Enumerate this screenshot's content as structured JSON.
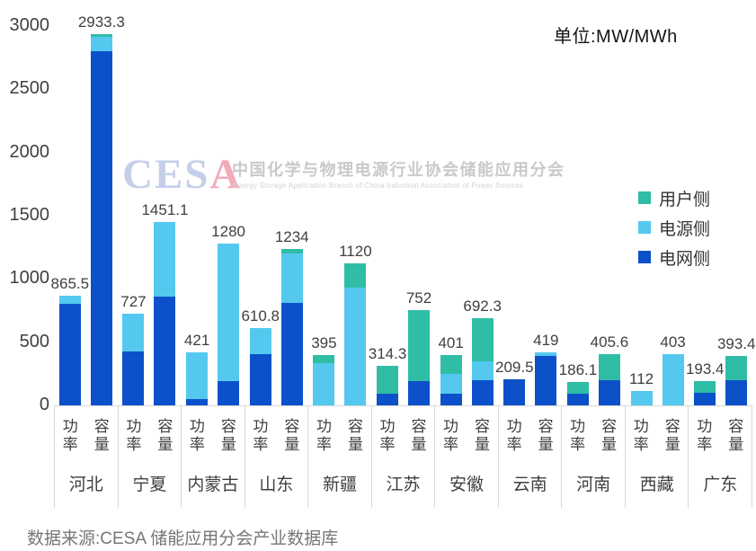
{
  "unit_label": "单位:MW/MWh",
  "source_note": "数据来源:CESA 储能应用分会产业数据库",
  "watermark": {
    "logo_ces": "CES",
    "logo_a": "A",
    "cn": "中国化学与物理电源行业协会储能应用分会",
    "en": "Energy Storage Application Branch of China Industrial Association of Power Sources"
  },
  "legend": {
    "position": "right",
    "items_top_to_bottom": [
      "用户侧",
      "电源侧",
      "电网侧"
    ]
  },
  "chart_data": {
    "type": "bar",
    "stacked": true,
    "unit": "MW/MWh",
    "grid": false,
    "ylim": [
      0,
      3000
    ],
    "yticks": [
      0,
      500,
      1000,
      1500,
      2000,
      2500,
      3000
    ],
    "bar_kinds": [
      "功率",
      "容量"
    ],
    "series": [
      {
        "key": "user",
        "label": "用户侧",
        "color": "#2fbda6"
      },
      {
        "key": "source",
        "label": "电源侧",
        "color": "#55c8f0"
      },
      {
        "key": "grid",
        "label": "电网侧",
        "color": "#0c51c9"
      }
    ],
    "stack_order_bottom_to_top": [
      "grid",
      "source",
      "user"
    ],
    "groups": [
      {
        "province": "河北",
        "bars": [
          {
            "kind": "功率",
            "label": "865.5",
            "total": 865.5,
            "grid": 800,
            "source": 65.5,
            "user": 0
          },
          {
            "kind": "容量",
            "label": "2933.3",
            "total": 2933.3,
            "grid": 2800,
            "source": 115,
            "user": 18.3
          }
        ]
      },
      {
        "province": "宁夏",
        "bars": [
          {
            "kind": "功率",
            "label": "727",
            "total": 727,
            "grid": 425,
            "source": 302,
            "user": 0
          },
          {
            "kind": "容量",
            "label": "1451.1",
            "total": 1451.1,
            "grid": 861.1,
            "source": 590,
            "user": 0
          }
        ]
      },
      {
        "province": "内蒙古",
        "bars": [
          {
            "kind": "功率",
            "label": "421",
            "total": 421,
            "grid": 51,
            "source": 370,
            "user": 0
          },
          {
            "kind": "容量",
            "label": "1280",
            "total": 1280,
            "grid": 195,
            "source": 1085,
            "user": 0
          }
        ]
      },
      {
        "province": "山东",
        "bars": [
          {
            "kind": "功率",
            "label": "610.8",
            "total": 610.8,
            "grid": 405.8,
            "source": 205,
            "user": 0
          },
          {
            "kind": "容量",
            "label": "1234",
            "total": 1234,
            "grid": 810,
            "source": 390,
            "user": 34
          }
        ]
      },
      {
        "province": "新疆",
        "bars": [
          {
            "kind": "功率",
            "label": "395",
            "total": 395,
            "grid": 0,
            "source": 337,
            "user": 58
          },
          {
            "kind": "容量",
            "label": "1120",
            "total": 1120,
            "grid": 0,
            "source": 930,
            "user": 190
          }
        ]
      },
      {
        "province": "江苏",
        "bars": [
          {
            "kind": "功率",
            "label": "314.3",
            "total": 314.3,
            "grid": 94.3,
            "source": 0,
            "user": 220
          },
          {
            "kind": "容量",
            "label": "752",
            "total": 752,
            "grid": 190,
            "source": 0,
            "user": 562
          }
        ]
      },
      {
        "province": "安徽",
        "bars": [
          {
            "kind": "功率",
            "label": "401",
            "total": 401,
            "grid": 91,
            "source": 161,
            "user": 149
          },
          {
            "kind": "容量",
            "label": "692.3",
            "total": 692.3,
            "grid": 199,
            "source": 148.3,
            "user": 345
          }
        ]
      },
      {
        "province": "云南",
        "bars": [
          {
            "kind": "功率",
            "label": "209.5",
            "total": 209.5,
            "grid": 209.5,
            "source": 0,
            "user": 0
          },
          {
            "kind": "容量",
            "label": "419",
            "total": 419,
            "grid": 390,
            "source": 29,
            "user": 0
          }
        ]
      },
      {
        "province": "河南",
        "bars": [
          {
            "kind": "功率",
            "label": "186.1",
            "total": 186.1,
            "grid": 95,
            "source": 0,
            "user": 91.1
          },
          {
            "kind": "容量",
            "label": "405.6",
            "total": 405.6,
            "grid": 200,
            "source": 0,
            "user": 205.6
          }
        ]
      },
      {
        "province": "西藏",
        "bars": [
          {
            "kind": "功率",
            "label": "112",
            "total": 112,
            "grid": 0,
            "source": 112,
            "user": 0
          },
          {
            "kind": "容量",
            "label": "403",
            "total": 403,
            "grid": 0,
            "source": 403,
            "user": 0
          }
        ]
      },
      {
        "province": "广东",
        "bars": [
          {
            "kind": "功率",
            "label": "193.4",
            "total": 193.4,
            "grid": 100,
            "source": 0,
            "user": 93.4
          },
          {
            "kind": "容量",
            "label": "393.4",
            "total": 393.4,
            "grid": 200,
            "source": 0,
            "user": 193.4
          }
        ]
      }
    ]
  }
}
